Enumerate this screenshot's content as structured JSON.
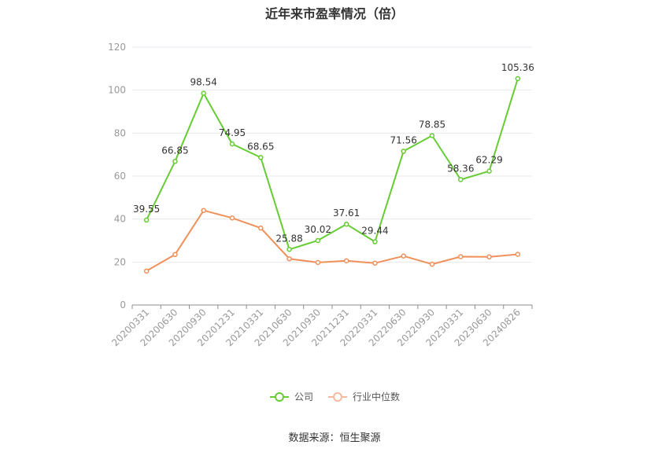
{
  "chart_data": {
    "type": "line",
    "title": "近年来市盈率情况（倍）",
    "categories": [
      "20200331",
      "20200630",
      "20200930",
      "20201231",
      "20210331",
      "20210630",
      "20210930",
      "20211231",
      "20220331",
      "20220630",
      "20220930",
      "20230331",
      "20230630",
      "20240826"
    ],
    "ylim": [
      0,
      120
    ],
    "yticks": [
      0,
      20,
      40,
      60,
      80,
      100,
      120
    ],
    "grid": true,
    "legend_position": "bottom",
    "series": [
      {
        "name": "公司",
        "color": "#66cc33",
        "show_labels": true,
        "values": [
          39.55,
          66.85,
          98.54,
          74.95,
          68.65,
          25.88,
          30.02,
          37.61,
          29.44,
          71.56,
          78.85,
          58.36,
          62.29,
          105.36
        ],
        "labels": [
          "39.55",
          "66.85",
          "98.54",
          "74.95",
          "68.65",
          "25.88",
          "30.02",
          "37.61",
          "29.44",
          "71.56",
          "78.85",
          "58.36",
          "62.29",
          "105.36"
        ]
      },
      {
        "name": "行业中位数",
        "color": "#f0905a",
        "show_labels": false,
        "values": [
          15.8,
          23.5,
          44.0,
          40.5,
          35.8,
          21.5,
          19.8,
          20.6,
          19.5,
          22.8,
          19.0,
          22.5,
          22.4,
          23.6
        ]
      }
    ],
    "source": "数据来源：恒生聚源"
  }
}
